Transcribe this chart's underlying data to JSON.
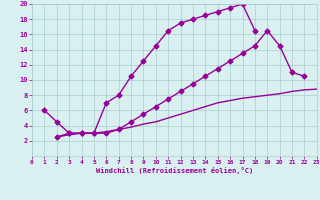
{
  "line1_x": [
    1,
    2,
    3,
    4,
    5,
    6,
    7,
    8,
    9,
    10,
    11,
    12,
    13,
    14,
    15,
    16,
    17,
    18
  ],
  "line1_y": [
    6.0,
    4.5,
    3.0,
    3.0,
    3.0,
    7.0,
    8.0,
    10.5,
    12.5,
    14.5,
    16.5,
    17.5,
    18.0,
    18.5,
    19.0,
    19.5,
    20.0,
    16.5
  ],
  "line2_x": [
    2,
    3,
    4,
    5,
    6,
    7,
    8,
    9,
    10,
    11,
    12,
    13,
    14,
    15,
    16,
    17,
    18,
    19,
    20,
    21,
    22
  ],
  "line2_y": [
    2.5,
    3.0,
    3.0,
    3.0,
    3.0,
    3.5,
    4.5,
    5.5,
    6.5,
    7.5,
    8.5,
    9.5,
    10.5,
    11.5,
    12.5,
    13.5,
    14.5,
    16.5,
    14.5,
    11.0,
    10.5
  ],
  "line3_x": [
    2,
    3,
    4,
    5,
    6,
    7,
    8,
    9,
    10,
    11,
    12,
    13,
    14,
    15,
    16,
    17,
    18,
    19,
    20,
    21,
    22,
    23
  ],
  "line3_y": [
    2.5,
    2.8,
    3.0,
    3.0,
    3.2,
    3.5,
    3.8,
    4.2,
    4.5,
    5.0,
    5.5,
    6.0,
    6.5,
    7.0,
    7.3,
    7.6,
    7.8,
    8.0,
    8.2,
    8.5,
    8.7,
    8.8
  ],
  "line_color": "#990099",
  "bg_color": "#d8f0f0",
  "grid_color": "#aacccc",
  "xlabel": "Windchill (Refroidissement éolien,°C)",
  "xlim": [
    0,
    23
  ],
  "ylim": [
    0,
    20
  ],
  "xticks": [
    0,
    1,
    2,
    3,
    4,
    5,
    6,
    7,
    8,
    9,
    10,
    11,
    12,
    13,
    14,
    15,
    16,
    17,
    18,
    19,
    20,
    21,
    22,
    23
  ],
  "yticks": [
    2,
    4,
    6,
    8,
    10,
    12,
    14,
    16,
    18,
    20
  ],
  "marker": "D",
  "markersize": 2.5,
  "linewidth": 1.0
}
